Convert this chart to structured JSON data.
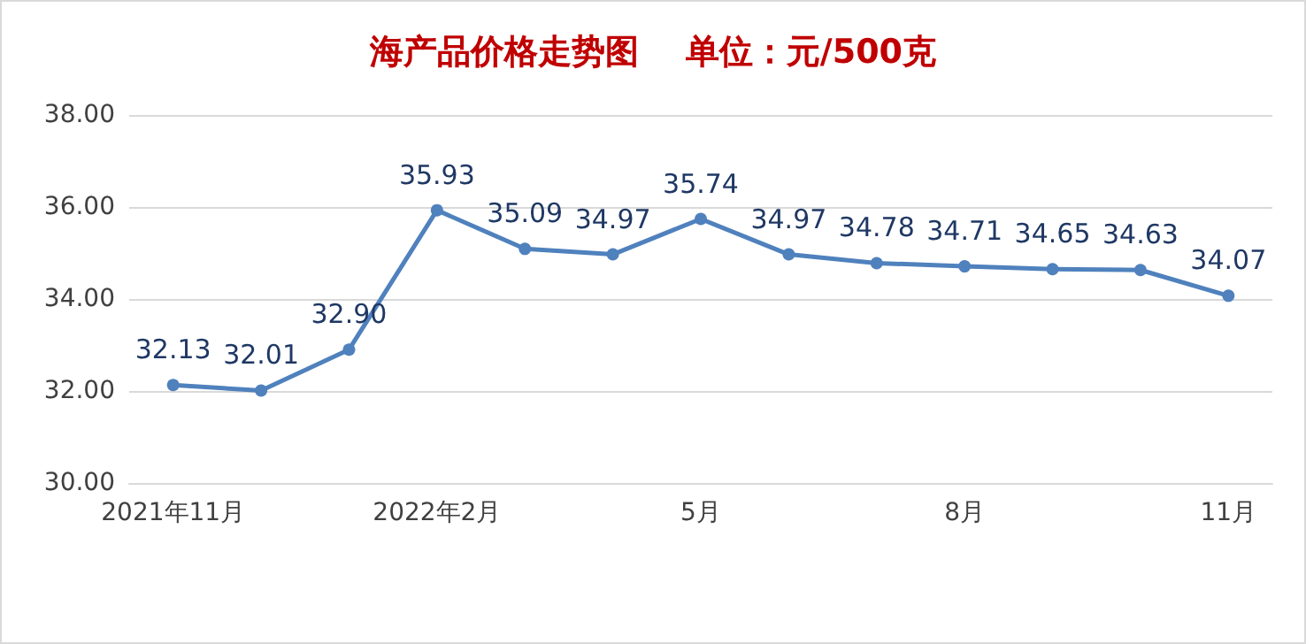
{
  "chart_data": {
    "type": "line",
    "title": "海产品价格走势图    单位：元/500克",
    "categories": [
      "2021年11月",
      null,
      null,
      "2022年2月",
      null,
      null,
      "5月",
      null,
      null,
      "8月",
      null,
      null,
      "11月"
    ],
    "series": [
      {
        "color": "#4f81bd",
        "values": [
          32.13,
          32.01,
          32.9,
          35.93,
          35.09,
          34.97,
          35.74,
          34.97,
          34.78,
          34.71,
          34.65,
          34.63,
          34.07
        ],
        "value_labels": [
          "32.13",
          "32.01",
          "32.90",
          "35.93",
          "35.09",
          "34.97",
          "35.74",
          "34.97",
          "34.78",
          "34.71",
          "34.65",
          "34.63",
          "34.07"
        ]
      }
    ],
    "ylim": [
      30,
      38
    ],
    "yticks": [
      {
        "value": 30,
        "label": "30.00"
      },
      {
        "value": 32,
        "label": "32.00"
      },
      {
        "value": 34,
        "label": "34.00"
      },
      {
        "value": 36,
        "label": "36.00"
      },
      {
        "value": 38,
        "label": "38.00"
      }
    ],
    "grid": "y",
    "marker": "circle",
    "line_style": "solid"
  }
}
